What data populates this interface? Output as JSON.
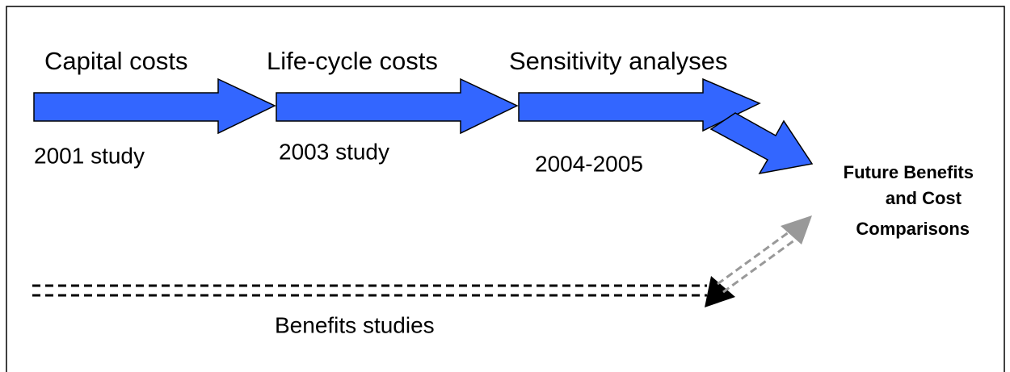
{
  "stages": [
    {
      "label": "Capital costs",
      "study": "2001 study"
    },
    {
      "label": "Life-cycle costs",
      "study": "2003 study"
    },
    {
      "label": "Sensitivity analyses",
      "study": "2004-2005"
    }
  ],
  "outcome": {
    "lines": [
      "Future Benefits",
      "and Cost",
      "Comparisons"
    ]
  },
  "benefits": {
    "label": "Benefits studies"
  }
}
